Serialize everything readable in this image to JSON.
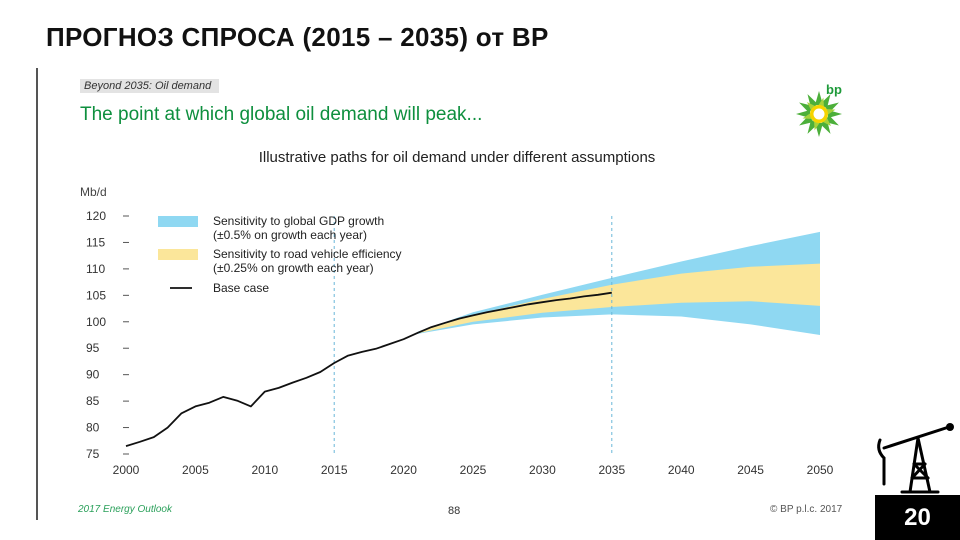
{
  "slide": {
    "title": "ПРОГНОЗ СПРОСА (2015 – 2035) от BP",
    "number": "20"
  },
  "header": {
    "section_tag": "Beyond 2035: Oil demand",
    "headline": "The point at which global oil demand will peak...",
    "brand": "bp"
  },
  "footer": {
    "left": "2017 Energy Outlook",
    "page": "88",
    "right": "© BP p.l.c. 2017"
  },
  "colors": {
    "gdp_band": "#8fd8f2",
    "vehicle_band": "#fbe69a",
    "base_line": "#111111",
    "headline": "#0e8f3e"
  },
  "chart_data": {
    "type": "area",
    "title": "Illustrative paths for oil demand under different assumptions",
    "ylabel": "Mb/d",
    "xlabel": "",
    "xlim": [
      2000,
      2050
    ],
    "ylim": [
      75,
      120
    ],
    "xticks": [
      2000,
      2005,
      2010,
      2015,
      2020,
      2025,
      2030,
      2035,
      2040,
      2045,
      2050
    ],
    "yticks": [
      75,
      80,
      85,
      90,
      95,
      100,
      105,
      110,
      115,
      120
    ],
    "reference_lines_x": [
      2015,
      2035
    ],
    "legend": [
      {
        "key": "gdp",
        "line1": "Sensitivity to global GDP growth",
        "line2": "(±0.5% on growth each year)"
      },
      {
        "key": "vehicle",
        "line1": "Sensitivity to road vehicle efficiency",
        "line2": "(±0.25% on growth each year)"
      },
      {
        "key": "base",
        "line1": "Base case",
        "line2": ""
      }
    ],
    "series": [
      {
        "name": "Base case",
        "x": [
          2000,
          2001,
          2002,
          2003,
          2004,
          2005,
          2006,
          2007,
          2008,
          2009,
          2010,
          2011,
          2012,
          2013,
          2014,
          2015,
          2016,
          2017,
          2018,
          2019,
          2020,
          2021,
          2022,
          2023,
          2024,
          2025,
          2026,
          2027,
          2028,
          2029,
          2030,
          2031,
          2032,
          2033,
          2034,
          2035
        ],
        "values": [
          76.5,
          77.3,
          78.2,
          80.0,
          82.7,
          84.0,
          84.7,
          85.8,
          85.1,
          84.0,
          86.8,
          87.5,
          88.5,
          89.4,
          90.5,
          92.2,
          93.6,
          94.3,
          94.9,
          95.8,
          96.7,
          97.9,
          99.0,
          99.8,
          100.6,
          101.2,
          101.8,
          102.3,
          102.8,
          103.3,
          103.7,
          104.1,
          104.4,
          104.8,
          105.1,
          105.5
        ]
      },
      {
        "name": "Sensitivity to global GDP growth",
        "x": [
          2021,
          2025,
          2030,
          2035,
          2040,
          2045,
          2050
        ],
        "upper": [
          98.1,
          101.8,
          105.1,
          108.3,
          111.4,
          114.3,
          117.0
        ],
        "lower": [
          97.7,
          99.5,
          100.8,
          101.4,
          101.0,
          99.5,
          97.5
        ]
      },
      {
        "name": "Sensitivity to road vehicle efficiency",
        "x": [
          2021,
          2025,
          2030,
          2035,
          2040,
          2045,
          2050
        ],
        "upper": [
          98.0,
          101.3,
          104.3,
          107.0,
          109.1,
          110.4,
          111.0
        ],
        "lower": [
          97.8,
          100.0,
          101.7,
          102.8,
          103.6,
          103.9,
          103.0
        ]
      }
    ]
  }
}
